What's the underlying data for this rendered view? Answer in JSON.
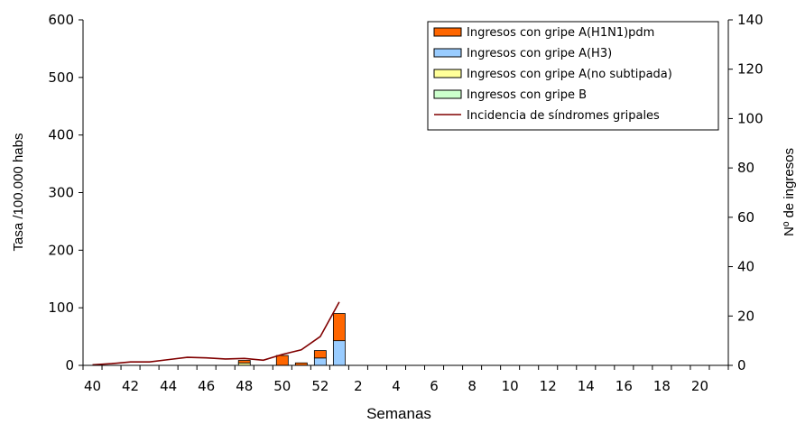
{
  "chart_data": {
    "type": "bar",
    "title": "",
    "xlabel": "Semanas",
    "ylabel_left": "Tasa /100.000 habs",
    "ylabel_right": "Nº de ingresos",
    "ylim_left": [
      0,
      600
    ],
    "ylim_right": [
      0,
      140
    ],
    "left_ticks": [
      0,
      100,
      200,
      300,
      400,
      500,
      600
    ],
    "right_ticks": [
      0,
      20,
      40,
      60,
      80,
      100,
      120,
      140
    ],
    "weeks": [
      40,
      41,
      42,
      43,
      44,
      45,
      46,
      47,
      48,
      49,
      50,
      51,
      52,
      53,
      1,
      2,
      3,
      4,
      5,
      6,
      7,
      8,
      9,
      10,
      11,
      12,
      13,
      14,
      15,
      16,
      17,
      18,
      19,
      20
    ],
    "x_tick_labels": [
      "40",
      "42",
      "44",
      "46",
      "48",
      "50",
      "52",
      "2",
      "4",
      "6",
      "8",
      "10",
      "12",
      "14",
      "16",
      "18",
      "20"
    ],
    "grid": false,
    "legend_position": "top-right",
    "colors": {
      "h1n1": "#FF6600",
      "h3": "#99CCFF",
      "no_subtipada": "#FFFF99",
      "gripe_b": "#CCFFCC",
      "incidencia": "#800000"
    },
    "bar_series": [
      {
        "key": "h1n1",
        "name": "Ingresos con gripe A(H1N1)pdm",
        "axis": "right",
        "values": [
          0,
          0,
          0,
          0,
          0,
          0,
          0,
          0,
          1,
          0,
          4,
          1,
          3,
          11,
          0,
          0,
          0,
          0,
          0,
          0,
          0,
          0,
          0,
          0,
          0,
          0,
          0,
          0,
          0,
          0,
          0,
          0,
          0,
          0
        ]
      },
      {
        "key": "h3",
        "name": "Ingresos con gripe A(H3)",
        "axis": "right",
        "values": [
          0,
          0,
          0,
          0,
          0,
          0,
          0,
          0,
          0,
          0,
          0,
          0,
          3,
          10,
          0,
          0,
          0,
          0,
          0,
          0,
          0,
          0,
          0,
          0,
          0,
          0,
          0,
          0,
          0,
          0,
          0,
          0,
          0,
          0
        ]
      },
      {
        "key": "no_subtipada",
        "name": "Ingresos con gripe A(no subtipada)",
        "axis": "right",
        "values": [
          0,
          0,
          0,
          0,
          0,
          0,
          0,
          0,
          1,
          0,
          0,
          0,
          0,
          0,
          0,
          0,
          0,
          0,
          0,
          0,
          0,
          0,
          0,
          0,
          0,
          0,
          0,
          0,
          0,
          0,
          0,
          0,
          0,
          0
        ]
      },
      {
        "key": "gripe_b",
        "name": "Ingresos con gripe B",
        "axis": "right",
        "values": [
          0,
          0,
          0,
          0,
          0,
          0,
          0,
          0,
          0,
          0,
          0,
          0,
          0,
          0,
          0,
          0,
          0,
          0,
          0,
          0,
          0,
          0,
          0,
          0,
          0,
          0,
          0,
          0,
          0,
          0,
          0,
          0,
          0,
          0
        ]
      }
    ],
    "line_series": {
      "key": "incidencia",
      "name": "Incidencia de síndromes gripales",
      "axis": "left",
      "weeks": [
        40,
        41,
        42,
        43,
        44,
        45,
        46,
        47,
        48,
        49,
        50,
        51,
        52,
        53
      ],
      "values": [
        1,
        3,
        6,
        6,
        10,
        14,
        13,
        11,
        12,
        9,
        19,
        27,
        50,
        110
      ]
    }
  }
}
